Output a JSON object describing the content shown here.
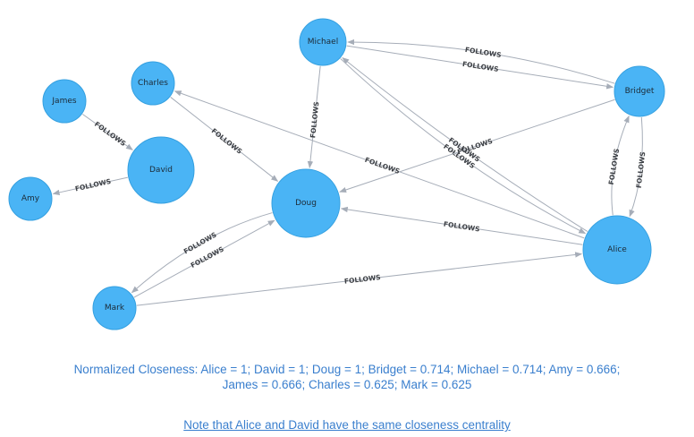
{
  "graph": {
    "edge_label": "FOLLOWS",
    "nodes": [
      {
        "id": "Michael",
        "label": "Michael"
      },
      {
        "id": "Charles",
        "label": "Charles"
      },
      {
        "id": "James",
        "label": "James"
      },
      {
        "id": "David",
        "label": "David"
      },
      {
        "id": "Amy",
        "label": "Amy"
      },
      {
        "id": "Doug",
        "label": "Doug"
      },
      {
        "id": "Bridget",
        "label": "Bridget"
      },
      {
        "id": "Alice",
        "label": "Alice"
      },
      {
        "id": "Mark",
        "label": "Mark"
      }
    ],
    "edges": [
      {
        "from": "James",
        "to": "David"
      },
      {
        "from": "David",
        "to": "Amy"
      },
      {
        "from": "Charles",
        "to": "Doug"
      },
      {
        "from": "Michael",
        "to": "Doug"
      },
      {
        "from": "Bridget",
        "to": "Michael"
      },
      {
        "from": "Michael",
        "to": "Bridget"
      },
      {
        "from": "Alice",
        "to": "Michael"
      },
      {
        "from": "Michael",
        "to": "Alice"
      },
      {
        "from": "Bridget",
        "to": "Doug"
      },
      {
        "from": "Alice",
        "to": "Charles"
      },
      {
        "from": "Alice",
        "to": "Doug"
      },
      {
        "from": "Bridget",
        "to": "Alice"
      },
      {
        "from": "Alice",
        "to": "Bridget"
      },
      {
        "from": "Doug",
        "to": "Mark"
      },
      {
        "from": "Mark",
        "to": "Doug"
      },
      {
        "from": "Mark",
        "to": "Alice"
      }
    ]
  },
  "captions": {
    "closeness_line1": "Normalized Closeness: Alice = 1; David = 1; Doug = 1; Bridget = 0.714; Michael = 0.714; Amy = 0.666;",
    "closeness_line2": "James = 0.666; Charles = 0.625; Mark = 0.625",
    "note": "Note that Alice and David have the same closeness centrality"
  }
}
